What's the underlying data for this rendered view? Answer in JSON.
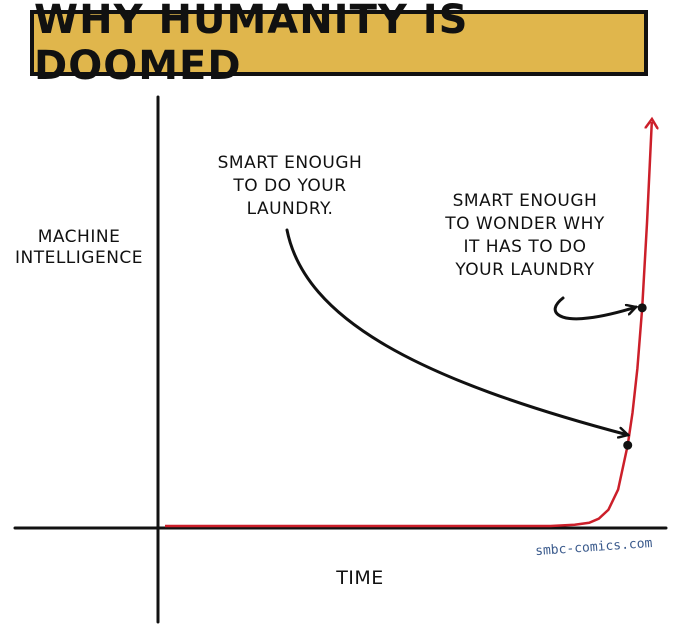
{
  "chart_data": {
    "type": "line",
    "title": "WHY HUMANITY IS DOOMED",
    "xlabel": "TIME",
    "ylabel_lines": [
      "MACHINE",
      "INTELLIGENCE"
    ],
    "series": [
      {
        "color": "#cc1f2a",
        "points": [
          [
            0.0,
            0.0
          ],
          [
            0.8,
            0.0
          ],
          [
            0.85,
            0.003
          ],
          [
            0.88,
            0.008
          ],
          [
            0.9,
            0.018
          ],
          [
            0.92,
            0.04
          ],
          [
            0.94,
            0.09
          ],
          [
            0.96,
            0.2
          ],
          [
            0.97,
            0.28
          ],
          [
            0.98,
            0.39
          ],
          [
            0.99,
            0.54
          ],
          [
            1.0,
            0.75
          ],
          [
            1.01,
            1.0
          ]
        ]
      }
    ],
    "annotations": [
      {
        "lines": [
          "SMART ENOUGH",
          "TO DO YOUR",
          "LAUNDRY."
        ],
        "marker": [
          0.96,
          0.2
        ]
      },
      {
        "lines": [
          "SMART ENOUGH",
          "TO WONDER WHY",
          "IT HAS TO DO",
          "YOUR LAUNDRY"
        ],
        "marker": [
          0.99,
          0.54
        ]
      }
    ],
    "credit": "smbc-comics.com",
    "grid": false,
    "axis_ticks": false
  },
  "colors": {
    "banner": "#e0b64c",
    "curve": "#cc1f2a",
    "ink": "#111111"
  }
}
